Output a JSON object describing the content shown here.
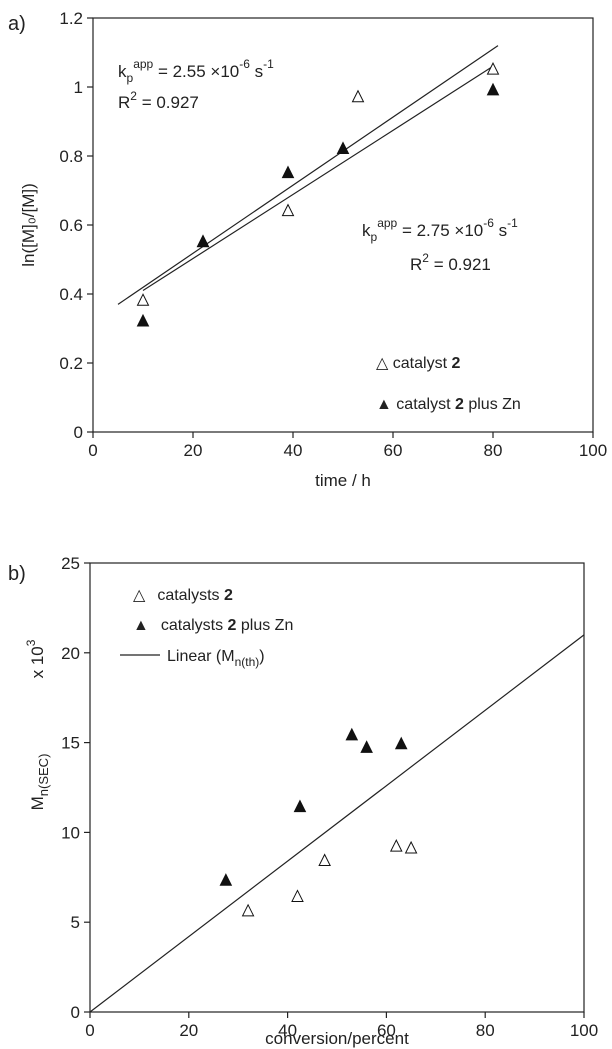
{
  "chart_data": [
    {
      "panel_label": "a)",
      "type": "scatter",
      "xlabel": "time / h",
      "ylabel": "ln([M]₀/[M])",
      "xlim": [
        0,
        100
      ],
      "ylim": [
        0,
        1.2
      ],
      "xticks": [
        0,
        20,
        40,
        60,
        80,
        100
      ],
      "yticks": [
        0,
        0.2,
        0.4,
        0.6,
        0.8,
        1,
        1.2
      ],
      "ytick_labels": [
        "0",
        "0.2",
        "0.4",
        "0.6",
        "0.8",
        "1",
        "1.2"
      ],
      "grid": false,
      "legend_position": "bottom-right",
      "series": [
        {
          "name": "catalyst 2",
          "marker": "open-triangle",
          "x": [
            10,
            22,
            39,
            53,
            80
          ],
          "y": [
            0.38,
            0.55,
            0.64,
            0.97,
            1.05
          ]
        },
        {
          "name": "catalyst 2 plus Zn",
          "marker": "filled-triangle",
          "x": [
            10,
            22,
            39,
            50,
            80
          ],
          "y": [
            0.32,
            0.55,
            0.75,
            0.82,
            0.99
          ]
        }
      ],
      "fit_lines": [
        {
          "x": [
            5,
            81
          ],
          "y": [
            0.37,
            1.12
          ]
        },
        {
          "x": [
            10,
            80
          ],
          "y": [
            0.41,
            1.06
          ]
        }
      ],
      "annotations": [
        {
          "k_label": "k",
          "k_sub": "p",
          "k_sup": "app",
          "k_value": " = 2.55 ×10",
          "k_exp": "-6",
          "k_unit": " s",
          "k_unit_exp": "-1",
          "r_label": "R",
          "r_exp": "2",
          "r_value": " = 0.927"
        },
        {
          "k_label": "k",
          "k_sub": "p",
          "k_sup": "app",
          "k_value": " = 2.75 ×10",
          "k_exp": "-6",
          "k_unit": " s",
          "k_unit_exp": "-1",
          "r_label": "R",
          "r_exp": "2",
          "r_value": " = 0.921"
        }
      ],
      "legend": [
        {
          "symbol": "△",
          "text": "catalyst ",
          "bold": "2",
          "suffix": ""
        },
        {
          "symbol": "▲",
          "text": "catalyst ",
          "bold": "2",
          "suffix": " plus Zn"
        }
      ]
    },
    {
      "panel_label": "b)",
      "type": "scatter",
      "xlabel": "conversion/percent",
      "ylabel_main": "M",
      "ylabel_sub": "n(SEC)",
      "ylabel_scale": "x 10",
      "ylabel_scale_exp": "3",
      "xlim": [
        0,
        100
      ],
      "ylim": [
        0,
        25
      ],
      "xticks": [
        0,
        20,
        40,
        60,
        80,
        100
      ],
      "yticks": [
        0,
        5,
        10,
        15,
        20,
        25
      ],
      "grid": false,
      "legend_position": "top-left",
      "series": [
        {
          "name": "catalysts 2",
          "marker": "open-triangle",
          "x": [
            32,
            42,
            47.5,
            62,
            65
          ],
          "y": [
            5.6,
            6.4,
            8.4,
            9.2,
            9.1
          ]
        },
        {
          "name": "catalysts 2 plus Zn",
          "marker": "filled-triangle",
          "x": [
            27.5,
            42.5,
            53,
            56,
            63
          ],
          "y": [
            7.3,
            11.4,
            15.4,
            14.7,
            14.9
          ]
        }
      ],
      "fit_lines": [
        {
          "name": "Linear (Mn(th))",
          "x": [
            0,
            100
          ],
          "y": [
            0,
            21
          ]
        }
      ],
      "legend": [
        {
          "symbol": "△",
          "text": "catalysts ",
          "bold": "2",
          "suffix": ""
        },
        {
          "symbol": "▲",
          "text": "catalysts ",
          "bold": "2",
          "suffix": " plus Zn"
        },
        {
          "symbol": "line",
          "text": "Linear (M",
          "sub": "n(th)",
          "suffix": ")"
        }
      ]
    }
  ]
}
